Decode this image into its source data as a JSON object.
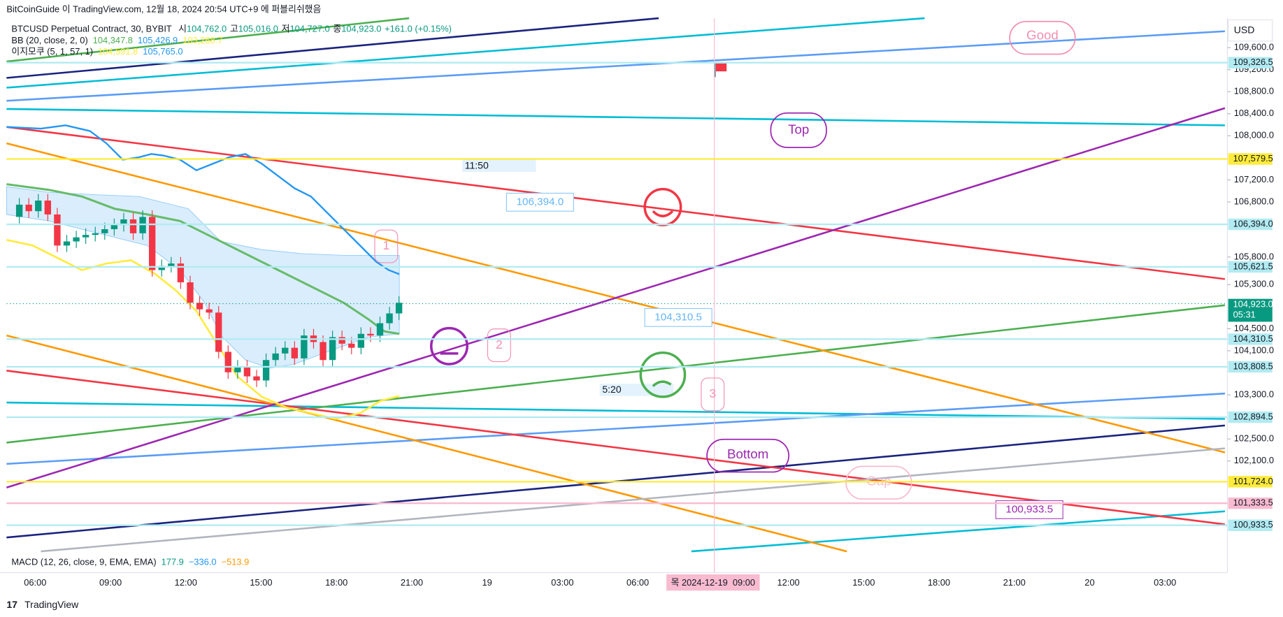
{
  "header": {
    "publisher": "BitCoinGuide 이 TradingView.com, 12월 18, 2024 20:54 UTC+9 에 퍼블리쉬했음"
  },
  "legend": {
    "symbol": "BTCUSD Perpetual Contract, 30, BYBIT",
    "ohlc": [
      {
        "label": "시",
        "value": "104,762.0"
      },
      {
        "label": "고",
        "value": "105,016.0"
      },
      {
        "label": "저",
        "value": "104,727.0"
      },
      {
        "label": "종",
        "value": "104,923.0"
      }
    ],
    "change": "+161.0 (+0.15%)",
    "bb": {
      "name": "BB (20, close, 2, 0)",
      "values": [
        "104,347.8",
        "105,426.9",
        "103,268.7"
      ]
    },
    "ichimoku": {
      "name": "이지모쿠 (5, 1, 57, 1)",
      "values": [
        "104,591.8",
        "105,765.0"
      ]
    },
    "macd": {
      "name": "MACD (12, 26, close, 9, EMA, EMA)",
      "values": [
        "177.9",
        "−336.0",
        "−513.9"
      ]
    }
  },
  "chart_data": {
    "type": "candlestick",
    "currency": "USD",
    "ylim": [
      100460,
      110460
    ],
    "yticks": [
      {
        "value": 109600,
        "label": "109,600.0"
      },
      {
        "value": 109200,
        "label": "109,200.0"
      },
      {
        "value": 108800,
        "label": "108,800.0"
      },
      {
        "value": 108400,
        "label": "108,400.0"
      },
      {
        "value": 108000,
        "label": "108,000.0"
      },
      {
        "value": 107200,
        "label": "107,200.0"
      },
      {
        "value": 106800,
        "label": "106,800.0"
      },
      {
        "value": 105800,
        "label": "105,800.0"
      },
      {
        "value": 105300,
        "label": "105,300.0"
      },
      {
        "value": 104500,
        "label": "104,500.0"
      },
      {
        "value": 104100,
        "label": "104,100.0"
      },
      {
        "value": 103300,
        "label": "103,300.0"
      },
      {
        "value": 102500,
        "label": "102,500.0"
      },
      {
        "value": 102100,
        "label": "102,100.0"
      }
    ],
    "price_labels": [
      {
        "value": 109326.5,
        "label": "109,326.5",
        "color": "#b2ebf2"
      },
      {
        "value": 107579.5,
        "label": "107,579.5",
        "color": "#ffeb3b"
      },
      {
        "value": 106394.0,
        "label": "106,394.0",
        "color": "#b2ebf2"
      },
      {
        "value": 105621.5,
        "label": "105,621.5",
        "color": "#b2ebf2"
      },
      {
        "value": 104310.5,
        "label": "104,310.5",
        "color": "#b2ebf2"
      },
      {
        "value": 103808.5,
        "label": "103,808.5",
        "color": "#b2ebf2"
      },
      {
        "value": 102894.5,
        "label": "102,894.5",
        "color": "#b2ebf2"
      },
      {
        "value": 101724.0,
        "label": "101,724.0",
        "color": "#ffeb3b"
      },
      {
        "value": 101333.5,
        "label": "101,333.5",
        "color": "#f8bbd0"
      },
      {
        "value": 100933.5,
        "label": "100,933.5",
        "color": "#b2ebf2"
      }
    ],
    "last_price": {
      "value": 104923.0,
      "label": "104,923.0",
      "countdown": "05:31",
      "color": "#089981"
    },
    "x_ticks": [
      "06:00",
      "09:00",
      "12:00",
      "15:00",
      "18:00",
      "21:00",
      "19",
      "03:00",
      "06:00",
      "목 2024-12-19  09:00",
      "12:00",
      "15:00",
      "18:00",
      "21:00",
      "20",
      "03:00"
    ],
    "crosshair_index": 9
  },
  "annotations": {
    "good": "Good",
    "top": "Top",
    "bottom": "Bottom",
    "gap": "Gap",
    "time_1": "11:50",
    "time_2": "5:20",
    "callout_1": "106,394.0",
    "callout_2": "104,310.5",
    "callout_3": "100,933.5",
    "n1": "1",
    "n2": "2",
    "n3": "3"
  },
  "footer": {
    "brand": "TradingView"
  }
}
